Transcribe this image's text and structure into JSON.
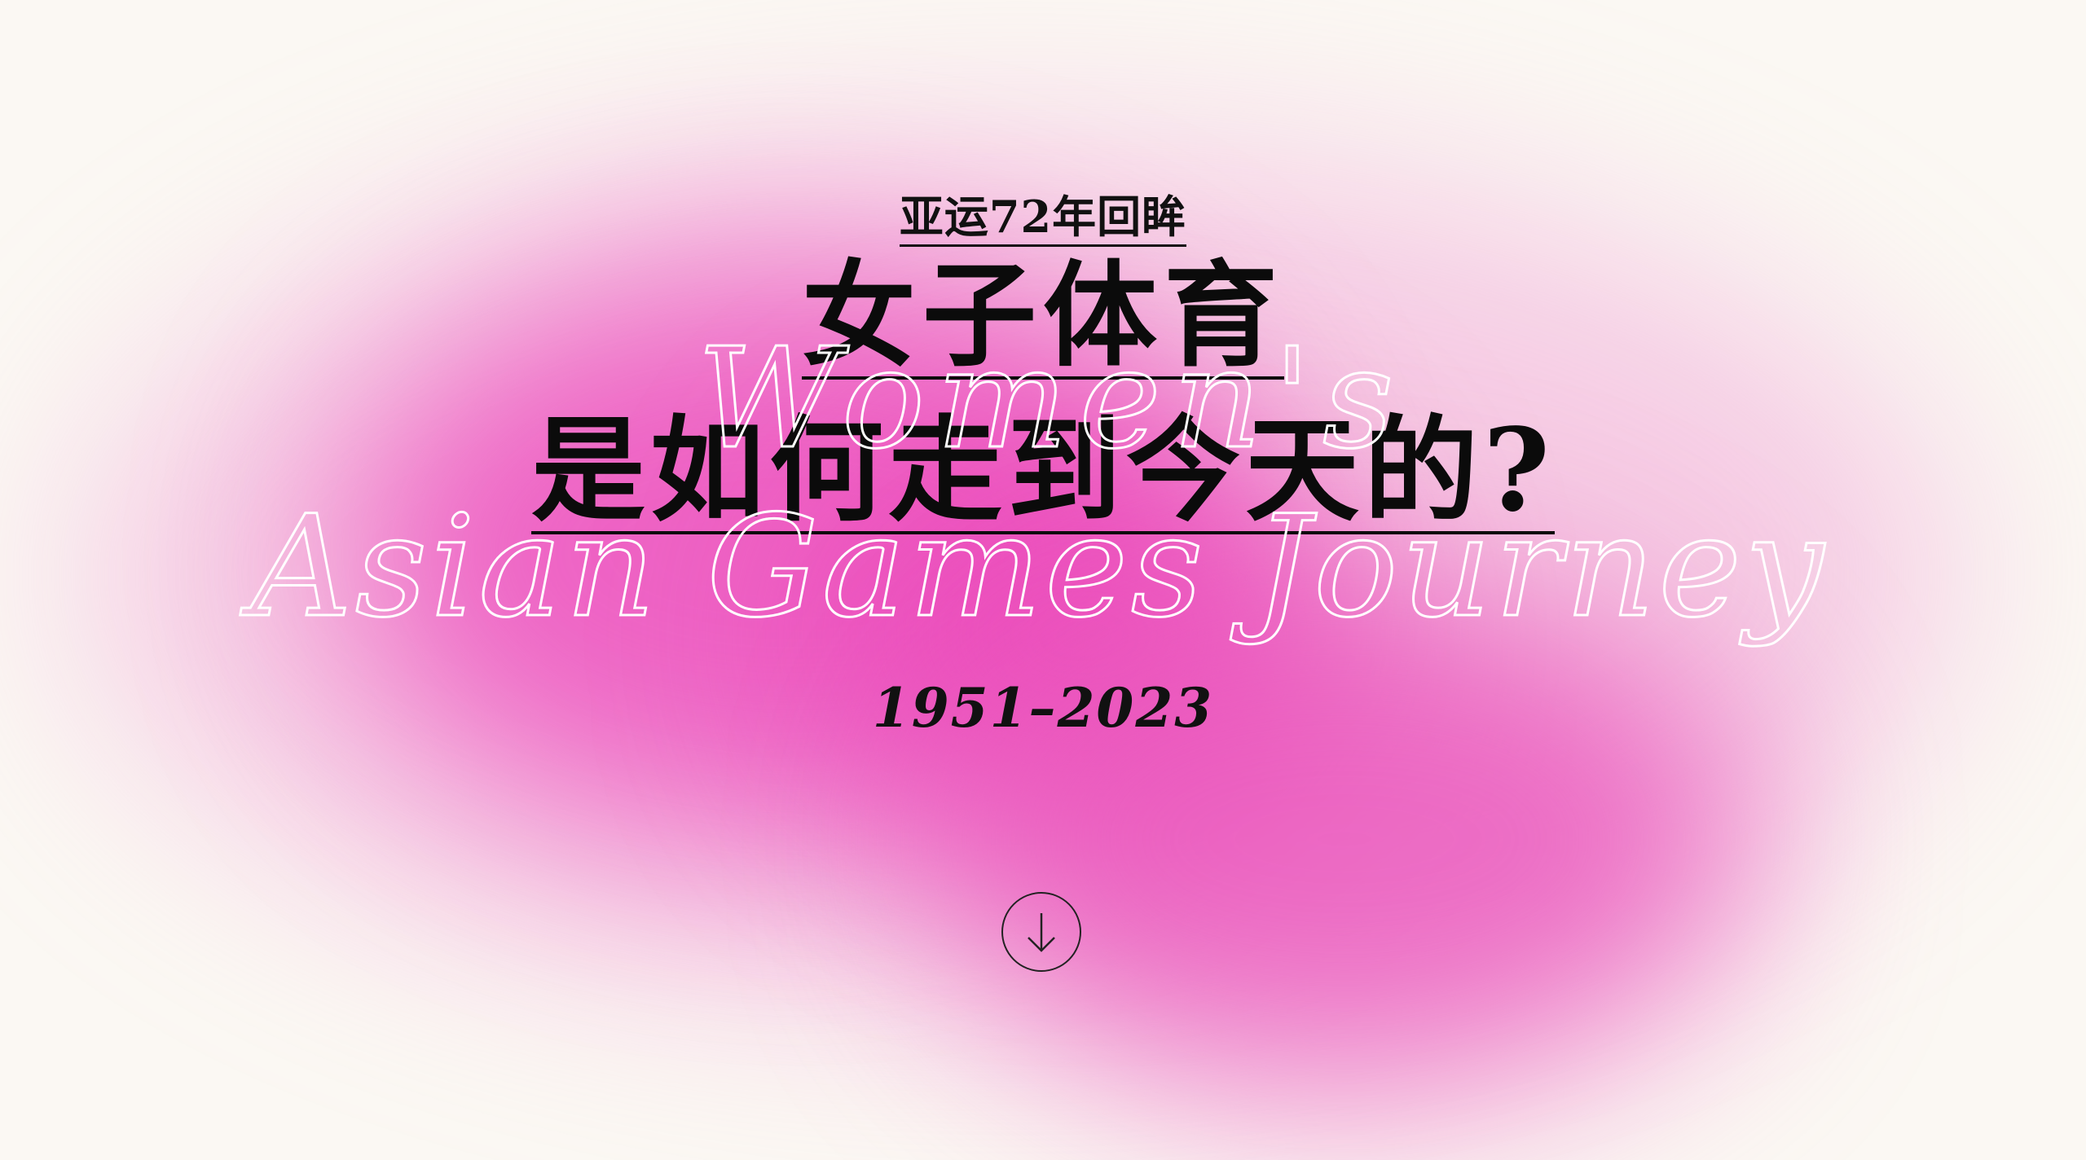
{
  "hero": {
    "subtitle": "亚运72年回眸",
    "title_line1": "女子体育",
    "title_line2": "是如何走到今天的?",
    "script_line1": "Women's",
    "script_line2": "Asian Games Journey",
    "years": "1951–2023"
  },
  "scroll_button": {
    "icon": "arrow-down-icon"
  },
  "colors": {
    "background": "#fbf8f3",
    "blob_pink": "#ec50be",
    "text": "#111111",
    "script_stroke": "#ffffff"
  }
}
